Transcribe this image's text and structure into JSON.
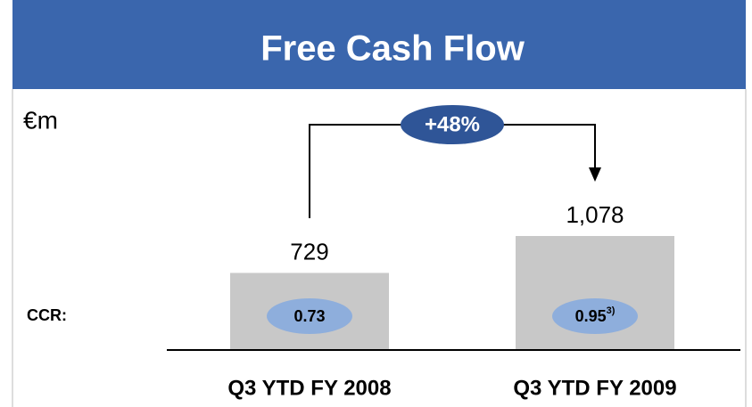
{
  "chart_data": {
    "type": "bar",
    "title": "Free Cash Flow",
    "unit_label": "€m",
    "categories": [
      "Q3 YTD FY 2008",
      "Q3 YTD FY 2009"
    ],
    "values": [
      729,
      1078
    ],
    "value_labels": [
      "729",
      "1,078"
    ],
    "color": "#c8c8c8",
    "annotation": "+48%",
    "ccr": {
      "label": "CCR:",
      "values": [
        0.73,
        0.95
      ],
      "footnotes": [
        null,
        "3)"
      ]
    }
  }
}
